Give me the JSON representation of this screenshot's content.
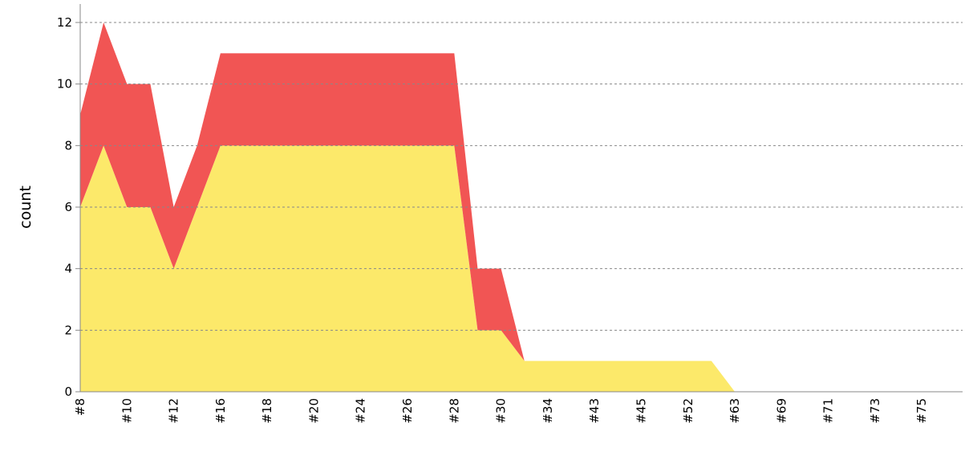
{
  "chart_data": {
    "type": "stacked-area",
    "y_label": "count",
    "categories": [
      "#8",
      null,
      "#10",
      null,
      "#12",
      null,
      "#16",
      null,
      "#18",
      null,
      "#20",
      null,
      "#24",
      null,
      "#26",
      null,
      "#28",
      null,
      "#30",
      null,
      "#34",
      null,
      "#43",
      null,
      "#45",
      null,
      "#52",
      null,
      "#63",
      null,
      "#69",
      null,
      "#71",
      null,
      "#73",
      null,
      "#75",
      null
    ],
    "series": [
      {
        "color": "#fce96a",
        "values": [
          6,
          8,
          6,
          6,
          4,
          6,
          8,
          8,
          8,
          8,
          8,
          8,
          8,
          8,
          8,
          8,
          8,
          2,
          2,
          1,
          1,
          1,
          1,
          1,
          1,
          1,
          1,
          1,
          0,
          0,
          0,
          0,
          0,
          0,
          0,
          0,
          0,
          0
        ]
      },
      {
        "color": "#f15554",
        "values": [
          3,
          4,
          4,
          4,
          2,
          2,
          3,
          3,
          3,
          3,
          3,
          3,
          3,
          3,
          3,
          3,
          3,
          2,
          2,
          0,
          0,
          0,
          0,
          0,
          0,
          0,
          0,
          0,
          0,
          0,
          0,
          0,
          0,
          0,
          0,
          0,
          0,
          0
        ]
      }
    ],
    "ylim": [
      0,
      12.6
    ],
    "yticks": [
      0,
      2,
      4,
      6,
      8,
      10,
      12
    ],
    "grid": true
  }
}
